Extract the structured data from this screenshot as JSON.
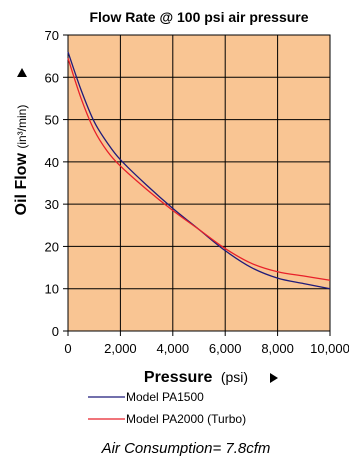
{
  "chart_data": {
    "type": "line",
    "title": "Flow Rate @ 100 psi air pressure",
    "xlabel": "Pressure",
    "xunit": "(psi)",
    "ylabel": "Oil Flow",
    "yunit": "(in³/min)",
    "xlim": [
      0,
      10000
    ],
    "ylim": [
      0,
      70
    ],
    "x_ticks": [
      0,
      2000,
      4000,
      6000,
      8000,
      10000
    ],
    "x_tick_labels": [
      "0",
      "2,000",
      "4,000",
      "6,000",
      "8,000",
      "10,000"
    ],
    "y_ticks": [
      0,
      10,
      20,
      30,
      40,
      50,
      60,
      70
    ],
    "y_tick_labels": [
      "0",
      "10",
      "20",
      "30",
      "40",
      "50",
      "60",
      "70"
    ],
    "grid": true,
    "plot_background": "#F9C593",
    "series": [
      {
        "name": "Model PA1500",
        "color": "#1F1B7A",
        "x": [
          0,
          500,
          1000,
          1500,
          2000,
          3000,
          4000,
          5000,
          6000,
          7000,
          8000,
          9000,
          10000
        ],
        "y": [
          66,
          57,
          49.5,
          44.5,
          40.5,
          34.5,
          29,
          24,
          19,
          15,
          12.5,
          11.2,
          10
        ]
      },
      {
        "name": "Model PA2000 (Turbo)",
        "color": "#E8202A",
        "x": [
          0,
          500,
          1000,
          1500,
          2000,
          3000,
          4000,
          5000,
          6000,
          7000,
          8000,
          9000,
          10000
        ],
        "y": [
          64.5,
          55,
          47.5,
          42.5,
          39,
          33.5,
          28.5,
          24,
          19.5,
          16,
          14,
          13,
          12
        ]
      }
    ],
    "legend_position": "bottom",
    "annotation": "Air Consumption= 7.8cfm"
  }
}
